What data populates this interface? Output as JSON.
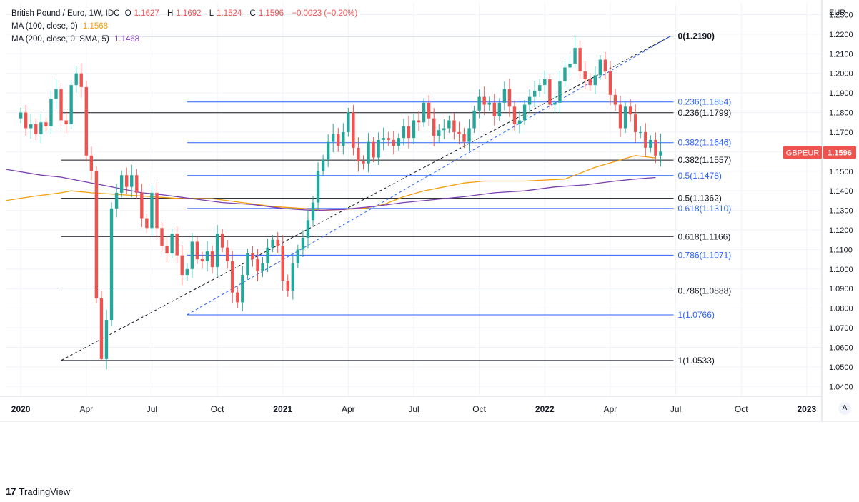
{
  "header": {
    "symbol_line": "British Pound / Euro, 1W, IDC",
    "o_label": "O",
    "o_value": "1.1627",
    "h_label": "H",
    "h_value": "1.1692",
    "l_label": "L",
    "l_value": "1.1524",
    "c_label": "C",
    "c_value": "1.1596",
    "change": "−0.0023 (−0.20%)",
    "ma100_label": "MA (100, close, 0)",
    "ma100_value": "1.1568",
    "ma200_label": "MA (200, close, 0, SMA, 5)",
    "ma200_value": "1.1468"
  },
  "currency_label": "EUR",
  "auto_button": "A",
  "logo_text": "TradingView",
  "colors": {
    "up": "#26a69a",
    "down": "#ef5350",
    "ma100": "#f59e0b",
    "ma200": "#7b3fb0",
    "fib_black": "#131722",
    "fib_blue": "#2962ff",
    "grid": "#f0f3fa"
  },
  "chart_data": {
    "type": "candlestick",
    "title": "British Pound / Euro, 1W, IDC",
    "ylabel": "EUR",
    "ylim": [
      1.035,
      1.236
    ],
    "y_ticks": [
      "1.2300",
      "1.2200",
      "1.2100",
      "1.2000",
      "1.1900",
      "1.1800",
      "1.1700",
      "1.1600",
      "1.1500",
      "1.1400",
      "1.1300",
      "1.1200",
      "1.1100",
      "1.1000",
      "1.0900",
      "1.0800",
      "1.0700",
      "1.0600",
      "1.0500",
      "1.0400"
    ],
    "x_ticks": [
      {
        "label": "2020",
        "bold": true,
        "week": 0
      },
      {
        "label": "Apr",
        "bold": false,
        "week": 13
      },
      {
        "label": "Jul",
        "bold": false,
        "week": 26
      },
      {
        "label": "Oct",
        "bold": false,
        "week": 39
      },
      {
        "label": "2021",
        "bold": true,
        "week": 52
      },
      {
        "label": "Apr",
        "bold": false,
        "week": 65
      },
      {
        "label": "Jul",
        "bold": false,
        "week": 78
      },
      {
        "label": "Oct",
        "bold": false,
        "week": 91
      },
      {
        "label": "2022",
        "bold": true,
        "week": 104
      },
      {
        "label": "Apr",
        "bold": false,
        "week": 117
      },
      {
        "label": "Jul",
        "bold": false,
        "week": 130
      },
      {
        "label": "Oct",
        "bold": false,
        "week": 143
      },
      {
        "label": "2023",
        "bold": true,
        "week": 156
      }
    ],
    "week_range": [
      -3,
      159
    ],
    "close_series": [
      1.18,
      1.172,
      1.174,
      1.169,
      1.175,
      1.173,
      1.187,
      1.192,
      1.176,
      1.174,
      1.194,
      1.2,
      1.193,
      1.158,
      1.15,
      1.085,
      1.054,
      1.074,
      1.131,
      1.139,
      1.148,
      1.142,
      1.148,
      1.139,
      1.126,
      1.121,
      1.139,
      1.121,
      1.112,
      1.108,
      1.118,
      1.107,
      1.097,
      1.1,
      1.114,
      1.105,
      1.104,
      1.109,
      1.101,
      1.118,
      1.111,
      1.104,
      1.088,
      1.083,
      1.097,
      1.108,
      1.105,
      1.099,
      1.103,
      1.111,
      1.115,
      1.112,
      1.094,
      1.089,
      1.103,
      1.11,
      1.116,
      1.125,
      1.134,
      1.15,
      1.156,
      1.165,
      1.169,
      1.163,
      1.17,
      1.18,
      1.162,
      1.155,
      1.154,
      1.165,
      1.157,
      1.166,
      1.167,
      1.166,
      1.163,
      1.167,
      1.173,
      1.167,
      1.176,
      1.175,
      1.185,
      1.177,
      1.168,
      1.171,
      1.172,
      1.176,
      1.17,
      1.169,
      1.165,
      1.172,
      1.181,
      1.188,
      1.184,
      1.185,
      1.178,
      1.185,
      1.192,
      1.183,
      1.174,
      1.176,
      1.184,
      1.188,
      1.191,
      1.194,
      1.197,
      1.184,
      1.185,
      1.196,
      1.203,
      1.205,
      1.213,
      1.201,
      1.197,
      1.194,
      1.199,
      1.207,
      1.201,
      1.189,
      1.184,
      1.172,
      1.183,
      1.179,
      1.17,
      1.17,
      1.162,
      1.166,
      1.158,
      1.16
    ],
    "candles_note": "Weekly OHLC candles Jan 2020 – Jun 2022; last candle O 1.1627 H 1.1692 L 1.1524 C 1.1596",
    "ma100": {
      "name": "MA (100, close, 0)",
      "last": 1.1568,
      "points": [
        [
          -3,
          1.135
        ],
        [
          2,
          1.137
        ],
        [
          8,
          1.139
        ],
        [
          10,
          1.14
        ],
        [
          14,
          1.139
        ],
        [
          20,
          1.138
        ],
        [
          26,
          1.137
        ],
        [
          32,
          1.136
        ],
        [
          38,
          1.136
        ],
        [
          44,
          1.134
        ],
        [
          50,
          1.132
        ],
        [
          56,
          1.131
        ],
        [
          60,
          1.13
        ],
        [
          64,
          1.1305
        ],
        [
          68,
          1.131
        ],
        [
          72,
          1.133
        ],
        [
          76,
          1.137
        ],
        [
          80,
          1.14
        ],
        [
          84,
          1.142
        ],
        [
          88,
          1.144
        ],
        [
          92,
          1.145
        ],
        [
          96,
          1.145
        ],
        [
          100,
          1.145
        ],
        [
          104,
          1.1455
        ],
        [
          108,
          1.146
        ],
        [
          110,
          1.148
        ],
        [
          114,
          1.152
        ],
        [
          118,
          1.155
        ],
        [
          122,
          1.158
        ],
        [
          126,
          1.1568
        ]
      ]
    },
    "ma200": {
      "name": "MA (200, close, 0, SMA, 5)",
      "last": 1.1468,
      "points": [
        [
          -3,
          1.151
        ],
        [
          4,
          1.148
        ],
        [
          8,
          1.147
        ],
        [
          12,
          1.145
        ],
        [
          16,
          1.143
        ],
        [
          20,
          1.141
        ],
        [
          24,
          1.139
        ],
        [
          28,
          1.138
        ],
        [
          34,
          1.136
        ],
        [
          40,
          1.134
        ],
        [
          46,
          1.133
        ],
        [
          52,
          1.131
        ],
        [
          58,
          1.13
        ],
        [
          64,
          1.1305
        ],
        [
          70,
          1.132
        ],
        [
          76,
          1.134
        ],
        [
          82,
          1.1355
        ],
        [
          88,
          1.137
        ],
        [
          94,
          1.139
        ],
        [
          100,
          1.14
        ],
        [
          106,
          1.142
        ],
        [
          112,
          1.143
        ],
        [
          118,
          1.145
        ],
        [
          122,
          1.146
        ],
        [
          126,
          1.1468
        ]
      ]
    },
    "fib_black": {
      "x_start_week": 8,
      "x_end_week": 129,
      "levels": [
        {
          "ratio": "0",
          "value": 1.219,
          "label": "0(1.2190)",
          "bold": true
        },
        {
          "ratio": "0.236",
          "value": 1.1799,
          "label": "0.236(1.1799)"
        },
        {
          "ratio": "0.382",
          "value": 1.1557,
          "label": "0.382(1.1557)"
        },
        {
          "ratio": "0.5",
          "value": 1.1362,
          "label": "0.5(1.1362)"
        },
        {
          "ratio": "0.618",
          "value": 1.1166,
          "label": "0.618(1.1166)"
        },
        {
          "ratio": "0.786",
          "value": 1.0888,
          "label": "0.786(1.0888)"
        },
        {
          "ratio": "1",
          "value": 1.0533,
          "label": "1(1.0533)"
        }
      ],
      "trend_line": [
        [
          8,
          1.0533
        ],
        [
          129,
          1.219
        ]
      ]
    },
    "fib_blue": {
      "x_start_week": 33,
      "x_end_week": 129,
      "levels": [
        {
          "ratio": "0.236",
          "value": 1.1854,
          "label": "0.236(1.1854)"
        },
        {
          "ratio": "0.382",
          "value": 1.1646,
          "label": "0.382(1.1646)"
        },
        {
          "ratio": "0.5",
          "value": 1.1478,
          "label": "0.5(1.1478)"
        },
        {
          "ratio": "0.618",
          "value": 1.131,
          "label": "0.618(1.1310)"
        },
        {
          "ratio": "0.786",
          "value": 1.1071,
          "label": "0.786(1.1071)"
        },
        {
          "ratio": "1",
          "value": 1.0766,
          "label": "1(1.0766)"
        }
      ],
      "trend_line": [
        [
          33,
          1.0766
        ],
        [
          129,
          1.219
        ]
      ]
    },
    "last_price_tag": {
      "symbol": "GBPEUR",
      "value": "1.1596"
    }
  }
}
